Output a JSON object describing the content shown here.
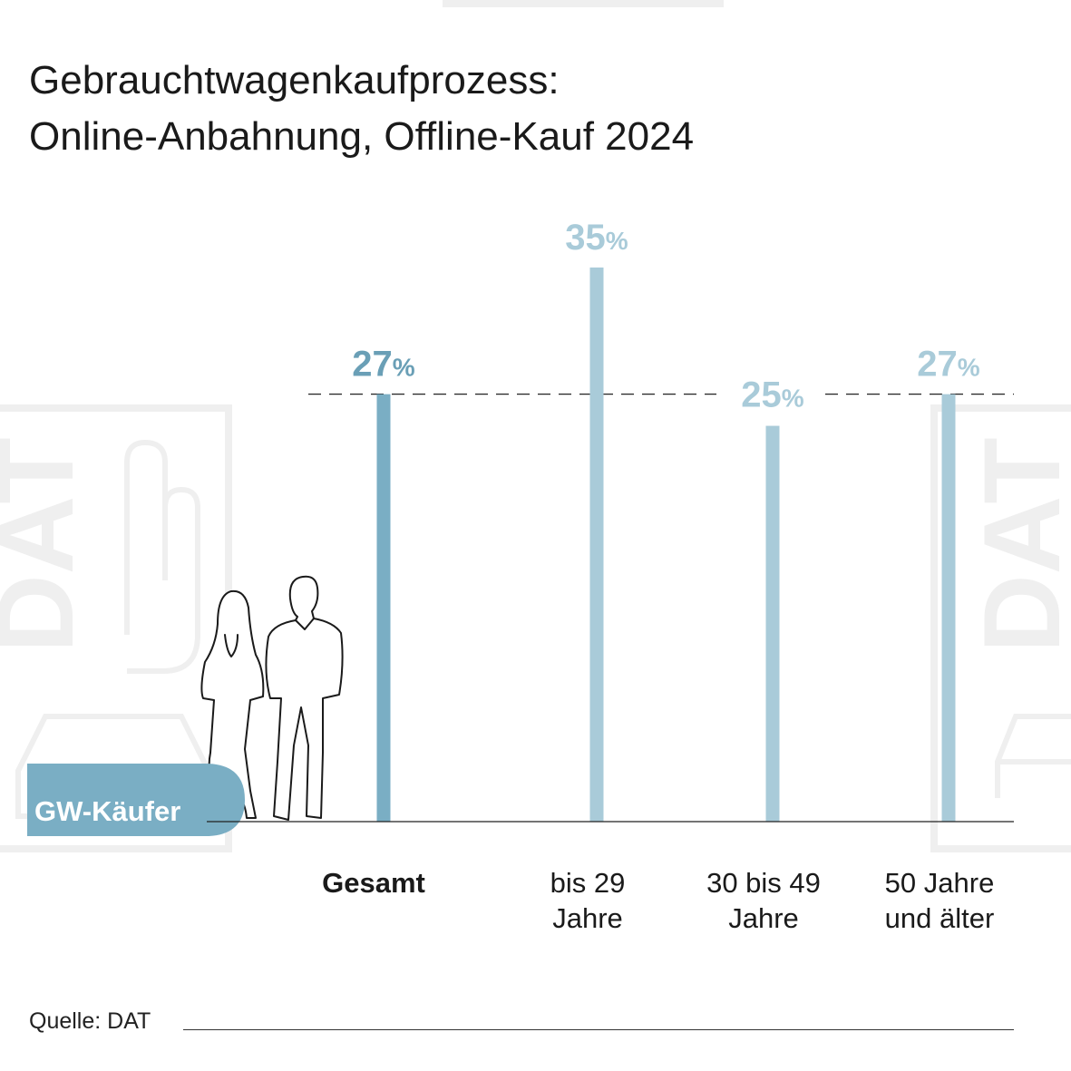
{
  "title": {
    "line1": "Gebrauchtwagenkaufprozess:",
    "line2": "Online-Anbahnung, Offline-Kauf 2024"
  },
  "badge": "GW-Käufer",
  "watermark": "DAT",
  "source": "Quelle: DAT",
  "colors": {
    "primary": "#7aaec4",
    "secondary": "#a9cbd9",
    "value_primary": "#6a9fb6",
    "value_secondary": "#a9cbd9",
    "badge_bg": "#7aaec4",
    "watermark": "#efefef"
  },
  "chart_data": {
    "type": "bar",
    "categories": [
      "Gesamt",
      "bis 29 Jahre",
      "30 bis 49 Jahre",
      "50 Jahre und älter"
    ],
    "category_lines": [
      [
        "Gesamt"
      ],
      [
        "bis 29",
        "Jahre"
      ],
      [
        "30 bis 49",
        "Jahre"
      ],
      [
        "50 Jahre",
        "und älter"
      ]
    ],
    "values": [
      27,
      35,
      25,
      27
    ],
    "value_labels": [
      "27",
      "35",
      "25",
      "27"
    ],
    "unit": "%",
    "reference_line": 27,
    "highlight_index": 0,
    "ylim": [
      0,
      35
    ],
    "grid": false
  }
}
